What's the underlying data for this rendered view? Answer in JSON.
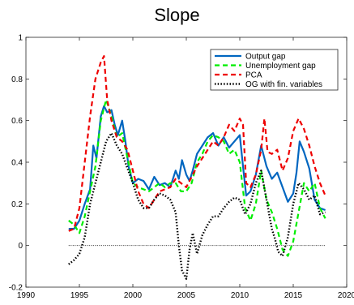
{
  "chart_data": {
    "type": "line",
    "title": "Slope",
    "xlabel": "",
    "ylabel": "",
    "xlim": [
      1990,
      2020
    ],
    "ylim": [
      -0.2,
      1
    ],
    "xticks": [
      1990,
      1995,
      2000,
      2005,
      2010,
      2015,
      2020
    ],
    "xtick_labels": [
      "1990",
      "1995",
      "2000",
      "2005",
      "2010",
      "2015",
      "2020"
    ],
    "yticks": [
      -0.2,
      0,
      0.2,
      0.4,
      0.6,
      0.8,
      1
    ],
    "ytick_labels": [
      "-0.2",
      "0",
      "0.2",
      "0.4",
      "0.6",
      "0.8",
      "1"
    ],
    "grid": false,
    "legend_position": "top-right",
    "zero_line": {
      "y": 0,
      "x_range": [
        1994,
        2018
      ],
      "color": "#000000",
      "style": "dotted"
    },
    "series": [
      {
        "name": "Output gap",
        "color": "#0066c0",
        "style": "solid",
        "x": [
          1994.0,
          1994.5,
          1995.0,
          1995.5,
          1996.0,
          1996.3,
          1996.6,
          1997.0,
          1997.3,
          1997.6,
          1998.0,
          1998.3,
          1998.6,
          1999.0,
          1999.3,
          1999.6,
          2000.0,
          2000.5,
          2001.0,
          2001.5,
          2002.0,
          2002.5,
          2003.0,
          2003.5,
          2004.0,
          2004.3,
          2004.6,
          2005.0,
          2005.3,
          2005.6,
          2006.0,
          2006.5,
          2007.0,
          2007.5,
          2008.0,
          2008.5,
          2009.0,
          2009.5,
          2010.0,
          2010.3,
          2010.6,
          2011.0,
          2011.5,
          2012.0,
          2012.5,
          2013.0,
          2013.5,
          2014.0,
          2014.5,
          2015.0,
          2015.3,
          2015.6,
          2016.0,
          2016.5,
          2017.0,
          2017.5,
          2018.0
        ],
        "values": [
          0.08,
          0.08,
          0.12,
          0.2,
          0.27,
          0.48,
          0.42,
          0.62,
          0.67,
          0.64,
          0.65,
          0.58,
          0.53,
          0.6,
          0.5,
          0.38,
          0.3,
          0.32,
          0.31,
          0.27,
          0.33,
          0.29,
          0.3,
          0.28,
          0.36,
          0.32,
          0.41,
          0.34,
          0.31,
          0.36,
          0.44,
          0.48,
          0.52,
          0.54,
          0.48,
          0.52,
          0.47,
          0.5,
          0.53,
          0.38,
          0.24,
          0.26,
          0.34,
          0.48,
          0.38,
          0.32,
          0.35,
          0.28,
          0.21,
          0.25,
          0.35,
          0.5,
          0.45,
          0.37,
          0.22,
          0.18,
          0.17
        ]
      },
      {
        "name": "Unemployment gap",
        "color": "#00ee00",
        "style": "dashed",
        "x": [
          1994.0,
          1994.5,
          1995.0,
          1995.5,
          1996.0,
          1996.5,
          1997.0,
          1997.5,
          1998.0,
          1998.5,
          1999.0,
          1999.5,
          2000.0,
          2000.5,
          2001.0,
          2001.5,
          2002.0,
          2002.5,
          2003.0,
          2003.5,
          2004.0,
          2004.5,
          2005.0,
          2005.5,
          2006.0,
          2006.5,
          2007.0,
          2007.5,
          2008.0,
          2008.5,
          2009.0,
          2009.5,
          2010.0,
          2010.5,
          2011.0,
          2011.5,
          2012.0,
          2012.5,
          2013.0,
          2013.5,
          2014.0,
          2014.5,
          2015.0,
          2015.5,
          2016.0,
          2016.5,
          2017.0,
          2017.5,
          2018.0
        ],
        "values": [
          0.12,
          0.1,
          0.06,
          0.14,
          0.26,
          0.38,
          0.6,
          0.7,
          0.62,
          0.52,
          0.54,
          0.42,
          0.3,
          0.28,
          0.27,
          0.26,
          0.28,
          0.3,
          0.28,
          0.3,
          0.3,
          0.26,
          0.26,
          0.3,
          0.4,
          0.44,
          0.5,
          0.53,
          0.52,
          0.5,
          0.44,
          0.46,
          0.4,
          0.18,
          0.12,
          0.2,
          0.36,
          0.22,
          0.16,
          0.08,
          -0.02,
          -0.05,
          0.02,
          0.16,
          0.3,
          0.26,
          0.3,
          0.18,
          0.13
        ]
      },
      {
        "name": "PCA",
        "color": "#ee0000",
        "style": "dashed",
        "x": [
          1994.0,
          1994.5,
          1995.0,
          1995.5,
          1996.0,
          1996.5,
          1997.0,
          1997.3,
          1997.6,
          1998.0,
          1998.5,
          1999.0,
          1999.5,
          2000.0,
          2000.5,
          2001.0,
          2001.5,
          2002.0,
          2002.5,
          2003.0,
          2003.5,
          2004.0,
          2004.5,
          2005.0,
          2005.5,
          2006.0,
          2006.5,
          2007.0,
          2007.5,
          2008.0,
          2008.5,
          2009.0,
          2009.5,
          2010.0,
          2010.3,
          2010.6,
          2011.0,
          2011.5,
          2012.0,
          2012.3,
          2012.6,
          2013.0,
          2013.5,
          2014.0,
          2014.5,
          2015.0,
          2015.5,
          2016.0,
          2016.5,
          2017.0,
          2017.5,
          2018.0
        ],
        "values": [
          0.07,
          0.08,
          0.18,
          0.4,
          0.62,
          0.8,
          0.88,
          0.91,
          0.7,
          0.6,
          0.52,
          0.5,
          0.46,
          0.36,
          0.26,
          0.2,
          0.18,
          0.22,
          0.26,
          0.27,
          0.28,
          0.32,
          0.3,
          0.28,
          0.33,
          0.38,
          0.42,
          0.46,
          0.5,
          0.48,
          0.52,
          0.58,
          0.55,
          0.61,
          0.58,
          0.3,
          0.28,
          0.34,
          0.46,
          0.61,
          0.45,
          0.44,
          0.46,
          0.36,
          0.42,
          0.55,
          0.61,
          0.56,
          0.48,
          0.38,
          0.3,
          0.24
        ]
      },
      {
        "name": "OG with fin. variables",
        "color": "#000000",
        "style": "dotted",
        "x": [
          1994.0,
          1994.5,
          1995.0,
          1995.5,
          1996.0,
          1996.5,
          1997.0,
          1997.5,
          1998.0,
          1998.5,
          1999.0,
          1999.5,
          2000.0,
          2000.5,
          2001.0,
          2001.5,
          2002.0,
          2002.5,
          2003.0,
          2003.5,
          2004.0,
          2004.3,
          2004.6,
          2005.0,
          2005.3,
          2005.6,
          2006.0,
          2006.5,
          2007.0,
          2007.5,
          2008.0,
          2008.5,
          2009.0,
          2009.5,
          2010.0,
          2010.5,
          2011.0,
          2011.5,
          2012.0,
          2012.5,
          2013.0,
          2013.3,
          2013.6,
          2014.0,
          2014.5,
          2015.0,
          2015.5,
          2016.0,
          2016.5,
          2017.0,
          2017.5,
          2018.0
        ],
        "values": [
          -0.09,
          -0.07,
          -0.04,
          0.04,
          0.2,
          0.3,
          0.4,
          0.5,
          0.54,
          0.48,
          0.44,
          0.37,
          0.3,
          0.22,
          0.18,
          0.18,
          0.22,
          0.25,
          0.24,
          0.22,
          0.16,
          0.0,
          -0.12,
          -0.16,
          -0.02,
          0.06,
          -0.04,
          0.05,
          0.1,
          0.14,
          0.14,
          0.18,
          0.21,
          0.23,
          0.22,
          0.15,
          0.2,
          0.3,
          0.36,
          0.22,
          0.08,
          0.03,
          -0.03,
          -0.05,
          0.04,
          0.2,
          0.3,
          0.27,
          0.22,
          0.24,
          0.15,
          0.16
        ]
      }
    ]
  }
}
